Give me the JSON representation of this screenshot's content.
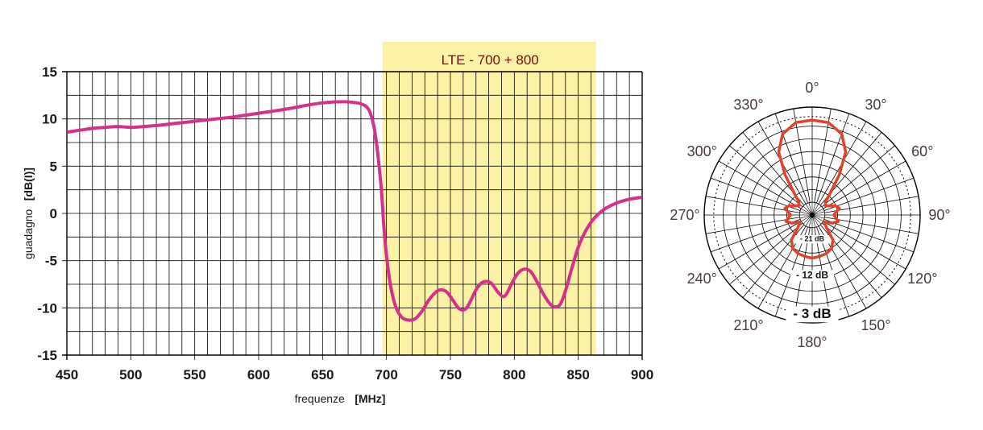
{
  "colors": {
    "gain_curve": "#d62f8c",
    "band_fill": "#fcf2a6",
    "grid": "#000000",
    "polar_curve": "#e0432c"
  },
  "chart_data": [
    {
      "type": "line",
      "title": "",
      "xlabel": "frequenze",
      "xunit": "[MHz]",
      "ylabel": "guadagno",
      "yunit": "[dB(I)]",
      "xlim": [
        450,
        900
      ],
      "ylim": [
        -15,
        15
      ],
      "xticks": [
        "450",
        "500",
        "550",
        "600",
        "650",
        "700",
        "750",
        "800",
        "850",
        "900"
      ],
      "yticks": [
        "15",
        "10",
        "5",
        "0",
        "-5",
        "-10",
        "-15"
      ],
      "grid": true,
      "band": {
        "label": "LTE - 700 + 800",
        "from": 700,
        "to": 862
      },
      "series": [
        {
          "points": [
            [
              450,
              8.6
            ],
            [
              460,
              8.8
            ],
            [
              470,
              9.0
            ],
            [
              480,
              9.1
            ],
            [
              490,
              9.2
            ],
            [
              500,
              9.1
            ],
            [
              510,
              9.2
            ],
            [
              520,
              9.3
            ],
            [
              530,
              9.45
            ],
            [
              540,
              9.6
            ],
            [
              550,
              9.75
            ],
            [
              560,
              9.9
            ],
            [
              570,
              10.05
            ],
            [
              580,
              10.2
            ],
            [
              590,
              10.4
            ],
            [
              600,
              10.6
            ],
            [
              610,
              10.8
            ],
            [
              620,
              11.0
            ],
            [
              630,
              11.25
            ],
            [
              640,
              11.5
            ],
            [
              650,
              11.7
            ],
            [
              660,
              11.8
            ],
            [
              670,
              11.8
            ],
            [
              680,
              11.6
            ],
            [
              686,
              11.0
            ],
            [
              690,
              9.3
            ],
            [
              693,
              6.5
            ],
            [
              696,
              2.5
            ],
            [
              698,
              -1.5
            ],
            [
              700,
              -4.5
            ],
            [
              703,
              -7.5
            ],
            [
              707,
              -9.8
            ],
            [
              712,
              -11.0
            ],
            [
              718,
              -11.3
            ],
            [
              723,
              -11.1
            ],
            [
              728,
              -10.3
            ],
            [
              733,
              -9.2
            ],
            [
              738,
              -8.4
            ],
            [
              742,
              -8.1
            ],
            [
              747,
              -8.3
            ],
            [
              752,
              -9.2
            ],
            [
              757,
              -10.1
            ],
            [
              762,
              -10.1
            ],
            [
              766,
              -9.2
            ],
            [
              770,
              -8.1
            ],
            [
              774,
              -7.4
            ],
            [
              778,
              -7.2
            ],
            [
              782,
              -7.4
            ],
            [
              787,
              -8.3
            ],
            [
              791,
              -8.8
            ],
            [
              794,
              -8.5
            ],
            [
              798,
              -7.4
            ],
            [
              803,
              -6.3
            ],
            [
              808,
              -5.9
            ],
            [
              813,
              -6.2
            ],
            [
              818,
              -7.3
            ],
            [
              823,
              -8.6
            ],
            [
              828,
              -9.6
            ],
            [
              832,
              -9.9
            ],
            [
              836,
              -9.6
            ],
            [
              840,
              -8.2
            ],
            [
              845,
              -5.8
            ],
            [
              850,
              -3.6
            ],
            [
              856,
              -1.8
            ],
            [
              862,
              -0.6
            ],
            [
              870,
              0.4
            ],
            [
              880,
              1.1
            ],
            [
              890,
              1.5
            ],
            [
              900,
              1.7
            ]
          ]
        }
      ]
    },
    {
      "type": "polar",
      "angle_labels": [
        "0°",
        "30°",
        "60°",
        "90°",
        "120°",
        "150°",
        "180°",
        "210°",
        "240°",
        "270°",
        "300°",
        "330°"
      ],
      "ring_labels": [
        "- 3 dB",
        "- 12 dB",
        "- 21 dB"
      ],
      "rlim": [
        0,
        1
      ],
      "pattern": [
        [
          0,
          0.88
        ],
        [
          10,
          0.87
        ],
        [
          20,
          0.8
        ],
        [
          28,
          0.66
        ],
        [
          34,
          0.45
        ],
        [
          40,
          0.25
        ],
        [
          46,
          0.17
        ],
        [
          55,
          0.15
        ],
        [
          62,
          0.18
        ],
        [
          68,
          0.23
        ],
        [
          76,
          0.26
        ],
        [
          84,
          0.22
        ],
        [
          90,
          0.2
        ],
        [
          96,
          0.22
        ],
        [
          104,
          0.25
        ],
        [
          112,
          0.2
        ],
        [
          120,
          0.13
        ],
        [
          132,
          0.18
        ],
        [
          140,
          0.3
        ],
        [
          150,
          0.36
        ],
        [
          160,
          0.38
        ],
        [
          170,
          0.39
        ],
        [
          180,
          0.4
        ],
        [
          190,
          0.39
        ],
        [
          200,
          0.38
        ],
        [
          210,
          0.36
        ],
        [
          220,
          0.3
        ],
        [
          228,
          0.18
        ],
        [
          240,
          0.13
        ],
        [
          248,
          0.2
        ],
        [
          256,
          0.25
        ],
        [
          264,
          0.22
        ],
        [
          270,
          0.2
        ],
        [
          276,
          0.22
        ],
        [
          284,
          0.26
        ],
        [
          292,
          0.23
        ],
        [
          298,
          0.18
        ],
        [
          305,
          0.15
        ],
        [
          314,
          0.17
        ],
        [
          320,
          0.25
        ],
        [
          326,
          0.45
        ],
        [
          332,
          0.66
        ],
        [
          340,
          0.8
        ],
        [
          350,
          0.87
        ],
        [
          360,
          0.88
        ]
      ]
    }
  ]
}
